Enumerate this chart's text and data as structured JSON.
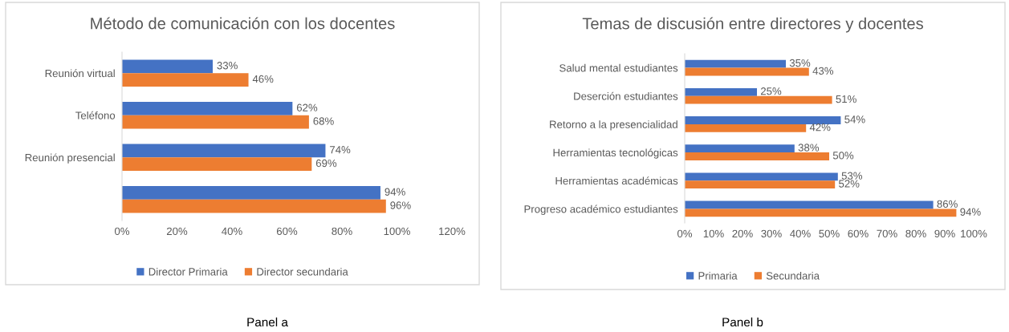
{
  "chart_data": [
    {
      "type": "bar",
      "orientation": "horizontal",
      "title": "Método de comunicación con los docentes",
      "categories": [
        "Reunión virtual",
        "Teléfono",
        "Reunión presencial",
        null
      ],
      "series": [
        {
          "name": "Director Primaria",
          "color": "#4472c4",
          "values": [
            33,
            62,
            74,
            94
          ],
          "value_labels": [
            "33%",
            "62%",
            "74%",
            "94%"
          ]
        },
        {
          "name": "Director secundaria",
          "color": "#ed7d31",
          "values": [
            46,
            68,
            69,
            96
          ],
          "value_labels": [
            "46%",
            "68%",
            "69%",
            "96%"
          ]
        }
      ],
      "xlim": [
        0,
        120
      ],
      "xticks": [
        {
          "value": 0,
          "label": "0%"
        },
        {
          "value": 20,
          "label": "20%"
        },
        {
          "value": 40,
          "label": "40%"
        },
        {
          "value": 60,
          "label": "60%"
        },
        {
          "value": 80,
          "label": "80%"
        },
        {
          "value": 100,
          "label": "100%"
        },
        {
          "value": 120,
          "label": "120%"
        }
      ],
      "grid": false,
      "legend": "bottom",
      "annotations": [
        "Panel a"
      ]
    },
    {
      "type": "bar",
      "orientation": "horizontal",
      "title": "Temas de discusión entre directores y docentes",
      "categories": [
        "Salud mental estudiantes",
        "Deserción estudiantes",
        "Retorno a la presencialidad",
        "Herramientas tecnológicas",
        "Herramientas académicas",
        "Progreso académico estudiantes"
      ],
      "series": [
        {
          "name": "Primaria",
          "color": "#4472c4",
          "values": [
            35,
            25,
            54,
            38,
            53,
            86
          ],
          "value_labels": [
            "35%",
            "25%",
            "54%",
            "38%",
            "53%",
            "86%"
          ]
        },
        {
          "name": "Secundaria",
          "color": "#ed7d31",
          "values": [
            43,
            51,
            42,
            50,
            52,
            94
          ],
          "value_labels": [
            "43%",
            "51%",
            "42%",
            "50%",
            "52%",
            "94%"
          ]
        }
      ],
      "xlim": [
        0,
        100
      ],
      "xticks": [
        {
          "value": 0,
          "label": "0%"
        },
        {
          "value": 10,
          "label": "10%"
        },
        {
          "value": 20,
          "label": "20%"
        },
        {
          "value": 30,
          "label": "30%"
        },
        {
          "value": 40,
          "label": "40%"
        },
        {
          "value": 50,
          "label": "50%"
        },
        {
          "value": 60,
          "label": "60%"
        },
        {
          "value": 70,
          "label": "70%"
        },
        {
          "value": 80,
          "label": "80%"
        },
        {
          "value": 90,
          "label": "90%"
        },
        {
          "value": 100,
          "label": "100%"
        }
      ],
      "grid": false,
      "legend": "bottom",
      "annotations": [
        "Panel b"
      ]
    }
  ]
}
